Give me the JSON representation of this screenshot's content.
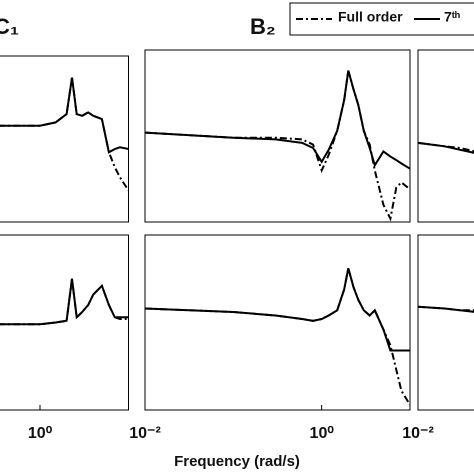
{
  "chart_data": [
    {
      "type": "line",
      "title": "C₁",
      "xscale": "log",
      "xlim": [
        0.01,
        10
      ],
      "ylim": [
        0,
        100
      ],
      "x": [
        0.01,
        0.1,
        0.3,
        0.6,
        1,
        1.5,
        2,
        2.3,
        2.6,
        3,
        3.5,
        4,
        5,
        6,
        7,
        8,
        10
      ],
      "series": [
        {
          "color": "#000000",
          "style": "dashdot",
          "values": [
            58,
            58,
            58,
            58,
            58,
            60,
            65,
            87,
            65,
            64,
            66,
            64,
            62,
            42,
            33,
            27,
            19
          ]
        },
        {
          "color": "#000000",
          "style": "solid",
          "values": [
            58,
            58,
            58,
            58,
            58,
            60,
            65,
            87,
            65,
            64,
            66,
            64,
            62,
            42,
            44,
            45,
            44
          ]
        }
      ]
    },
    {
      "type": "line",
      "title": "B₂",
      "xscale": "log",
      "xlim": [
        0.01,
        10
      ],
      "ylim": [
        0,
        100
      ],
      "x": [
        0.01,
        0.1,
        0.3,
        0.6,
        0.8,
        1.0,
        1.2,
        1.5,
        1.8,
        2.0,
        2.3,
        2.6,
        3.0,
        3.5,
        4.0,
        5,
        6,
        7,
        8,
        10
      ],
      "series": [
        {
          "name": "Full order",
          "color": "#000000",
          "style": "dashdot",
          "values": [
            52,
            49,
            49,
            48,
            45,
            30,
            39,
            53,
            71,
            88,
            77,
            68,
            53,
            45,
            30,
            10,
            2,
            20,
            23,
            19
          ]
        },
        {
          "name": "7ᵗʰ",
          "color": "#000000",
          "style": "solid",
          "values": [
            52,
            49,
            48,
            46,
            43,
            35,
            42,
            53,
            71,
            88,
            77,
            68,
            53,
            43,
            33,
            41,
            38,
            36,
            34,
            31
          ]
        }
      ]
    },
    {
      "type": "line",
      "xscale": "log",
      "xlim": [
        0.01,
        10
      ],
      "ylim": [
        0,
        100
      ],
      "x": [
        0.01,
        0.02,
        0.03,
        0.045
      ],
      "series": [
        {
          "color": "#000000",
          "style": "dashdot",
          "values": [
            46,
            44,
            43,
            41
          ]
        },
        {
          "color": "#000000",
          "style": "solid",
          "values": [
            46,
            44,
            42,
            40
          ]
        }
      ]
    },
    {
      "type": "line",
      "xscale": "log",
      "xlim": [
        0.01,
        10
      ],
      "ylim": [
        0,
        100
      ],
      "xticks": [
        {
          "value": 1,
          "label": "10⁰"
        }
      ],
      "x": [
        0.01,
        0.1,
        0.3,
        0.6,
        1,
        1.5,
        2,
        2.3,
        2.6,
        3,
        3.5,
        4,
        5,
        6,
        7,
        8,
        10
      ],
      "series": [
        {
          "color": "#000000",
          "style": "dashdot",
          "values": [
            49,
            49,
            49,
            49,
            49,
            50,
            51,
            75,
            53,
            56,
            60,
            66,
            71,
            60,
            53,
            52,
            52
          ]
        },
        {
          "color": "#000000",
          "style": "solid",
          "values": [
            49,
            49,
            49,
            49,
            49,
            50,
            51,
            75,
            53,
            56,
            60,
            66,
            71,
            60,
            53,
            53,
            53
          ]
        }
      ]
    },
    {
      "type": "line",
      "xlabel": "Frequency  (rad/s)",
      "xscale": "log",
      "xlim": [
        0.01,
        10
      ],
      "ylim": [
        0,
        100
      ],
      "xticks": [
        {
          "value": 0.01,
          "label": "10⁻²"
        },
        {
          "value": 1,
          "label": "10⁰"
        }
      ],
      "x": [
        0.01,
        0.1,
        0.3,
        0.6,
        0.8,
        1.0,
        1.2,
        1.5,
        1.8,
        2.0,
        2.3,
        2.6,
        3.0,
        3.5,
        4.0,
        5,
        6,
        7,
        8,
        10
      ],
      "series": [
        {
          "color": "#000000",
          "style": "dashdot",
          "values": [
            58,
            56,
            54,
            52,
            51,
            52,
            54,
            57,
            69,
            81,
            70,
            63,
            57,
            54,
            57,
            46,
            37,
            23,
            11,
            3
          ]
        },
        {
          "color": "#000000",
          "style": "solid",
          "values": [
            58,
            56,
            54,
            52,
            51,
            52,
            54,
            57,
            69,
            81,
            70,
            63,
            57,
            54,
            57,
            46,
            34,
            34,
            34,
            34
          ]
        }
      ]
    },
    {
      "type": "line",
      "xscale": "log",
      "xlim": [
        0.01,
        10
      ],
      "ylim": [
        0,
        100
      ],
      "xticks": [
        {
          "value": 0.01,
          "label": "10⁻²"
        }
      ],
      "x": [
        0.01,
        0.02,
        0.03,
        0.045
      ],
      "series": [
        {
          "color": "#000000",
          "style": "dashdot",
          "values": [
            59,
            58,
            57,
            57
          ]
        },
        {
          "color": "#000000",
          "style": "solid",
          "values": [
            59,
            58,
            57,
            56
          ]
        }
      ]
    }
  ]
}
